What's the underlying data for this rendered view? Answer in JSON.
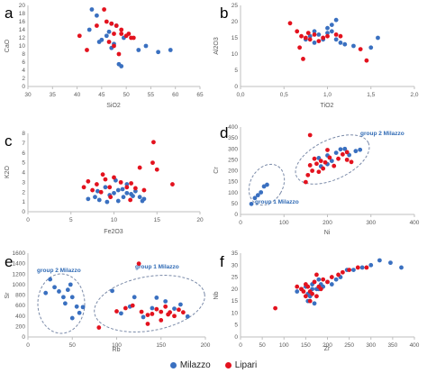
{
  "colors": {
    "milazzo": "#3a70c0",
    "lipari": "#e3121e",
    "axis": "#bfbfbf",
    "text": "#595959",
    "panel_letter": "#000000",
    "annotation": "#2f6ab5"
  },
  "legend": {
    "milazzo": "Milazzo",
    "lipari": "Lipari"
  },
  "chart_data": [
    {
      "panel": "a",
      "type": "scatter",
      "xlabel": "SiO2",
      "ylabel": "CaO",
      "xlim": [
        30,
        65
      ],
      "ylim": [
        0,
        20
      ],
      "xticks": [
        "30",
        "35",
        "40",
        "45",
        "50",
        "55",
        "60",
        "65"
      ],
      "yticks": [
        "0",
        "2",
        "4",
        "6",
        "8",
        "10",
        "12",
        "14",
        "16",
        "18",
        "20"
      ],
      "series": [
        {
          "name": "Milazzo",
          "points": [
            [
              43,
              19
            ],
            [
              44,
              17.5
            ],
            [
              42.5,
              14
            ],
            [
              47,
              15.5
            ],
            [
              46.5,
              13.5
            ],
            [
              48,
              15
            ],
            [
              49.5,
              12
            ],
            [
              46,
              12.5
            ],
            [
              45,
              11.5
            ],
            [
              47.5,
              10.5
            ],
            [
              48.5,
              5.5
            ],
            [
              49,
              5
            ],
            [
              52.5,
              9
            ],
            [
              54,
              10
            ],
            [
              56.5,
              8.5
            ],
            [
              59,
              9
            ],
            [
              44.5,
              11
            ],
            [
              47,
              9.5
            ]
          ]
        },
        {
          "name": "Lipari",
          "points": [
            [
              45.5,
              19
            ],
            [
              46,
              16
            ],
            [
              47,
              15.5
            ],
            [
              48,
              15
            ],
            [
              49,
              14
            ],
            [
              47.5,
              13
            ],
            [
              50,
              12.5
            ],
            [
              50.5,
              13
            ],
            [
              51.5,
              12
            ],
            [
              46.5,
              11
            ],
            [
              47.5,
              10
            ],
            [
              49,
              13
            ],
            [
              40.5,
              12.5
            ],
            [
              42,
              9
            ],
            [
              44,
              15
            ],
            [
              51,
              12
            ],
            [
              48.5,
              8
            ]
          ]
        }
      ]
    },
    {
      "panel": "b",
      "type": "scatter",
      "xlabel": "TiO2",
      "ylabel": "Al2O3",
      "xlim": [
        0,
        2
      ],
      "ylim": [
        0,
        25
      ],
      "xticks": [
        "0,0",
        "0,5",
        "1,0",
        "1,5",
        "2,0"
      ],
      "yticks": [
        "0",
        "5",
        "10",
        "15",
        "20",
        "25"
      ],
      "series": [
        {
          "name": "Milazzo",
          "points": [
            [
              0.75,
              14.5
            ],
            [
              0.8,
              15.5
            ],
            [
              0.85,
              17
            ],
            [
              0.9,
              16
            ],
            [
              0.95,
              15
            ],
            [
              1.0,
              18
            ],
            [
              1.05,
              19
            ],
            [
              1.05,
              17
            ],
            [
              1.1,
              20.5
            ],
            [
              1.1,
              14.5
            ],
            [
              1.15,
              13.5
            ],
            [
              1.2,
              13
            ],
            [
              1.3,
              12.5
            ],
            [
              1.5,
              12
            ],
            [
              1.58,
              15
            ],
            [
              0.85,
              13.5
            ],
            [
              0.95,
              14.5
            ],
            [
              1.0,
              16.5
            ]
          ]
        },
        {
          "name": "Lipari",
          "points": [
            [
              0.57,
              19.5
            ],
            [
              0.65,
              17
            ],
            [
              0.7,
              15.5
            ],
            [
              0.75,
              15
            ],
            [
              0.8,
              14.5
            ],
            [
              0.85,
              16
            ],
            [
              0.9,
              14
            ],
            [
              0.95,
              15
            ],
            [
              0.72,
              8.5
            ],
            [
              0.68,
              12
            ],
            [
              1.0,
              15.5
            ],
            [
              1.1,
              16
            ],
            [
              1.15,
              15.5
            ],
            [
              1.38,
              11.5
            ],
            [
              1.45,
              8
            ],
            [
              0.78,
              16.5
            ]
          ]
        }
      ]
    },
    {
      "panel": "c",
      "type": "scatter",
      "xlabel": "Fe2O3",
      "ylabel": "K2O",
      "xlim": [
        0,
        20
      ],
      "ylim": [
        0,
        8
      ],
      "xticks": [
        "0",
        "5",
        "10",
        "15",
        "20"
      ],
      "yticks": [
        "0",
        "1",
        "2",
        "3",
        "4",
        "5",
        "6",
        "7",
        "8"
      ],
      "series": [
        {
          "name": "Milazzo",
          "points": [
            [
              7,
              1.3
            ],
            [
              7.8,
              1.5
            ],
            [
              8.3,
              1.2
            ],
            [
              9,
              2.5
            ],
            [
              9.5,
              1.7
            ],
            [
              10,
              1.9
            ],
            [
              10.5,
              2.2
            ],
            [
              10.5,
              1.1
            ],
            [
              11,
              2.3
            ],
            [
              11.5,
              1.9
            ],
            [
              11.5,
              2.8
            ],
            [
              12,
              1.8
            ],
            [
              12.5,
              2.1
            ],
            [
              13,
              1.5
            ],
            [
              13.5,
              1.3
            ],
            [
              12.2,
              1.6
            ],
            [
              9.2,
              1.0
            ],
            [
              10.2,
              3.2
            ],
            [
              8.1,
              2.1
            ],
            [
              11.1,
              1.5
            ],
            [
              13.3,
              1.1
            ]
          ]
        },
        {
          "name": "Lipari",
          "points": [
            [
              6.5,
              2.5
            ],
            [
              7,
              3.1
            ],
            [
              7.5,
              2.2
            ],
            [
              8,
              2.8
            ],
            [
              8.5,
              2.0
            ],
            [
              9,
              3.3
            ],
            [
              9.5,
              2.5
            ],
            [
              10,
              3.5
            ],
            [
              10.8,
              3.0
            ],
            [
              11.5,
              2.5
            ],
            [
              12,
              2.9
            ],
            [
              12.5,
              2.4
            ],
            [
              13,
              4.5
            ],
            [
              13.5,
              2.2
            ],
            [
              14.5,
              5.0
            ],
            [
              14.6,
              7.1
            ],
            [
              15,
              4.3
            ],
            [
              16.8,
              2.8
            ],
            [
              9.6,
              1.5
            ],
            [
              11.9,
              1.2
            ],
            [
              8.7,
              3.8
            ]
          ]
        }
      ]
    },
    {
      "panel": "d",
      "type": "scatter",
      "xlabel": "Ni",
      "ylabel": "Cr",
      "xlim": [
        0,
        400
      ],
      "ylim": [
        0,
        400
      ],
      "xticks": [
        "0",
        "100",
        "200",
        "300",
        "400"
      ],
      "yticks": [
        "0",
        "50",
        "100",
        "150",
        "200",
        "250",
        "300",
        "350",
        "400"
      ],
      "annotations": [
        "group 2 Milazzo",
        "group 1 Milazzo"
      ],
      "series": [
        {
          "name": "Milazzo",
          "points": [
            [
              25,
              48
            ],
            [
              33,
              75
            ],
            [
              40,
              88
            ],
            [
              47,
              101
            ],
            [
              54,
              128
            ],
            [
              61,
              136
            ],
            [
              180,
              258
            ],
            [
              200,
              270
            ],
            [
              210,
              245
            ],
            [
              220,
              282
            ],
            [
              230,
              298
            ],
            [
              240,
              300
            ],
            [
              250,
              272
            ],
            [
              265,
              290
            ],
            [
              275,
              296
            ],
            [
              200,
              230
            ],
            [
              185,
              220
            ]
          ]
        },
        {
          "name": "Lipari",
          "points": [
            [
              150,
              148
            ],
            [
              155,
              180
            ],
            [
              160,
              225
            ],
            [
              165,
              200
            ],
            [
              170,
              255
            ],
            [
              175,
              232
            ],
            [
              180,
              195
            ],
            [
              185,
              245
            ],
            [
              190,
              210
            ],
            [
              195,
              238
            ],
            [
              205,
              260
            ],
            [
              215,
              222
            ],
            [
              225,
              255
            ],
            [
              235,
              275
            ],
            [
              245,
              250
            ],
            [
              255,
              240
            ],
            [
              200,
              295
            ],
            [
              245,
              285
            ],
            [
              160,
              363
            ]
          ]
        }
      ]
    },
    {
      "panel": "e",
      "type": "scatter",
      "xlabel": "Rb",
      "ylabel": "Sr",
      "xlim": [
        0,
        200
      ],
      "ylim": [
        0,
        1600
      ],
      "xticks": [
        "0",
        "50",
        "100",
        "150",
        "200"
      ],
      "yticks": [
        "0",
        "200",
        "400",
        "600",
        "800",
        "1000",
        "1200",
        "1400",
        "1600"
      ],
      "annotations": [
        "group 2 Milazzo",
        "group 1 Milazzo"
      ],
      "series": [
        {
          "name": "Milazzo",
          "points": [
            [
              20,
              840
            ],
            [
              25,
              1100
            ],
            [
              30,
              950
            ],
            [
              35,
              870
            ],
            [
              40,
              760
            ],
            [
              42,
              640
            ],
            [
              45,
              900
            ],
            [
              48,
              1000
            ],
            [
              50,
              760
            ],
            [
              50,
              360
            ],
            [
              55,
              580
            ],
            [
              58,
              460
            ],
            [
              62,
              570
            ],
            [
              95,
              880
            ],
            [
              105,
              450
            ],
            [
              115,
              580
            ],
            [
              120,
              760
            ],
            [
              130,
              380
            ],
            [
              140,
              550
            ],
            [
              145,
              750
            ],
            [
              155,
              680
            ],
            [
              165,
              540
            ],
            [
              172,
              620
            ],
            [
              180,
              390
            ]
          ]
        },
        {
          "name": "Lipari",
          "points": [
            [
              80,
              180
            ],
            [
              100,
              490
            ],
            [
              110,
              550
            ],
            [
              118,
              600
            ],
            [
              125,
              1400
            ],
            [
              128,
              480
            ],
            [
              135,
              420
            ],
            [
              140,
              440
            ],
            [
              145,
              530
            ],
            [
              150,
              480
            ],
            [
              155,
              580
            ],
            [
              158,
              430
            ],
            [
              160,
              470
            ],
            [
              165,
              400
            ],
            [
              170,
              520
            ],
            [
              175,
              470
            ],
            [
              150,
              320
            ],
            [
              135,
              250
            ]
          ]
        }
      ]
    },
    {
      "panel": "f",
      "type": "scatter",
      "xlabel": "Zr",
      "ylabel": "Nb",
      "xlim": [
        0,
        400
      ],
      "ylim": [
        0,
        35
      ],
      "xticks": [
        "0",
        "50",
        "100",
        "150",
        "200",
        "250",
        "300",
        "350",
        "400"
      ],
      "yticks": [
        "0",
        "5",
        "10",
        "15",
        "20",
        "25",
        "30",
        "35"
      ],
      "series": [
        {
          "name": "Milazzo",
          "points": [
            [
              130,
              19
            ],
            [
              140,
              20
            ],
            [
              150,
              21
            ],
            [
              155,
              18
            ],
            [
              160,
              17
            ],
            [
              165,
              22
            ],
            [
              170,
              23
            ],
            [
              175,
              20
            ],
            [
              180,
              24
            ],
            [
              185,
              22
            ],
            [
              190,
              21
            ],
            [
              200,
              23
            ],
            [
              210,
              22
            ],
            [
              220,
              24
            ],
            [
              230,
              25
            ],
            [
              245,
              28
            ],
            [
              260,
              28
            ],
            [
              280,
              29
            ],
            [
              300,
              30
            ],
            [
              320,
              32
            ],
            [
              345,
              31
            ],
            [
              370,
              29
            ],
            [
              155,
              15
            ],
            [
              170,
              14
            ],
            [
              165,
              20
            ],
            [
              180,
              20
            ]
          ]
        },
        {
          "name": "Lipari",
          "points": [
            [
              80,
              12
            ],
            [
              130,
              21
            ],
            [
              140,
              20
            ],
            [
              145,
              19
            ],
            [
              150,
              22
            ],
            [
              155,
              21
            ],
            [
              160,
              19
            ],
            [
              165,
              18
            ],
            [
              170,
              23
            ],
            [
              175,
              26
            ],
            [
              180,
              21
            ],
            [
              185,
              20
            ],
            [
              190,
              24
            ],
            [
              200,
              23
            ],
            [
              210,
              25
            ],
            [
              225,
              26
            ],
            [
              235,
              27
            ],
            [
              250,
              28
            ],
            [
              270,
              29
            ],
            [
              290,
              29
            ],
            [
              160,
              15
            ],
            [
              150,
              17
            ],
            [
              175,
              17
            ]
          ]
        }
      ]
    }
  ]
}
